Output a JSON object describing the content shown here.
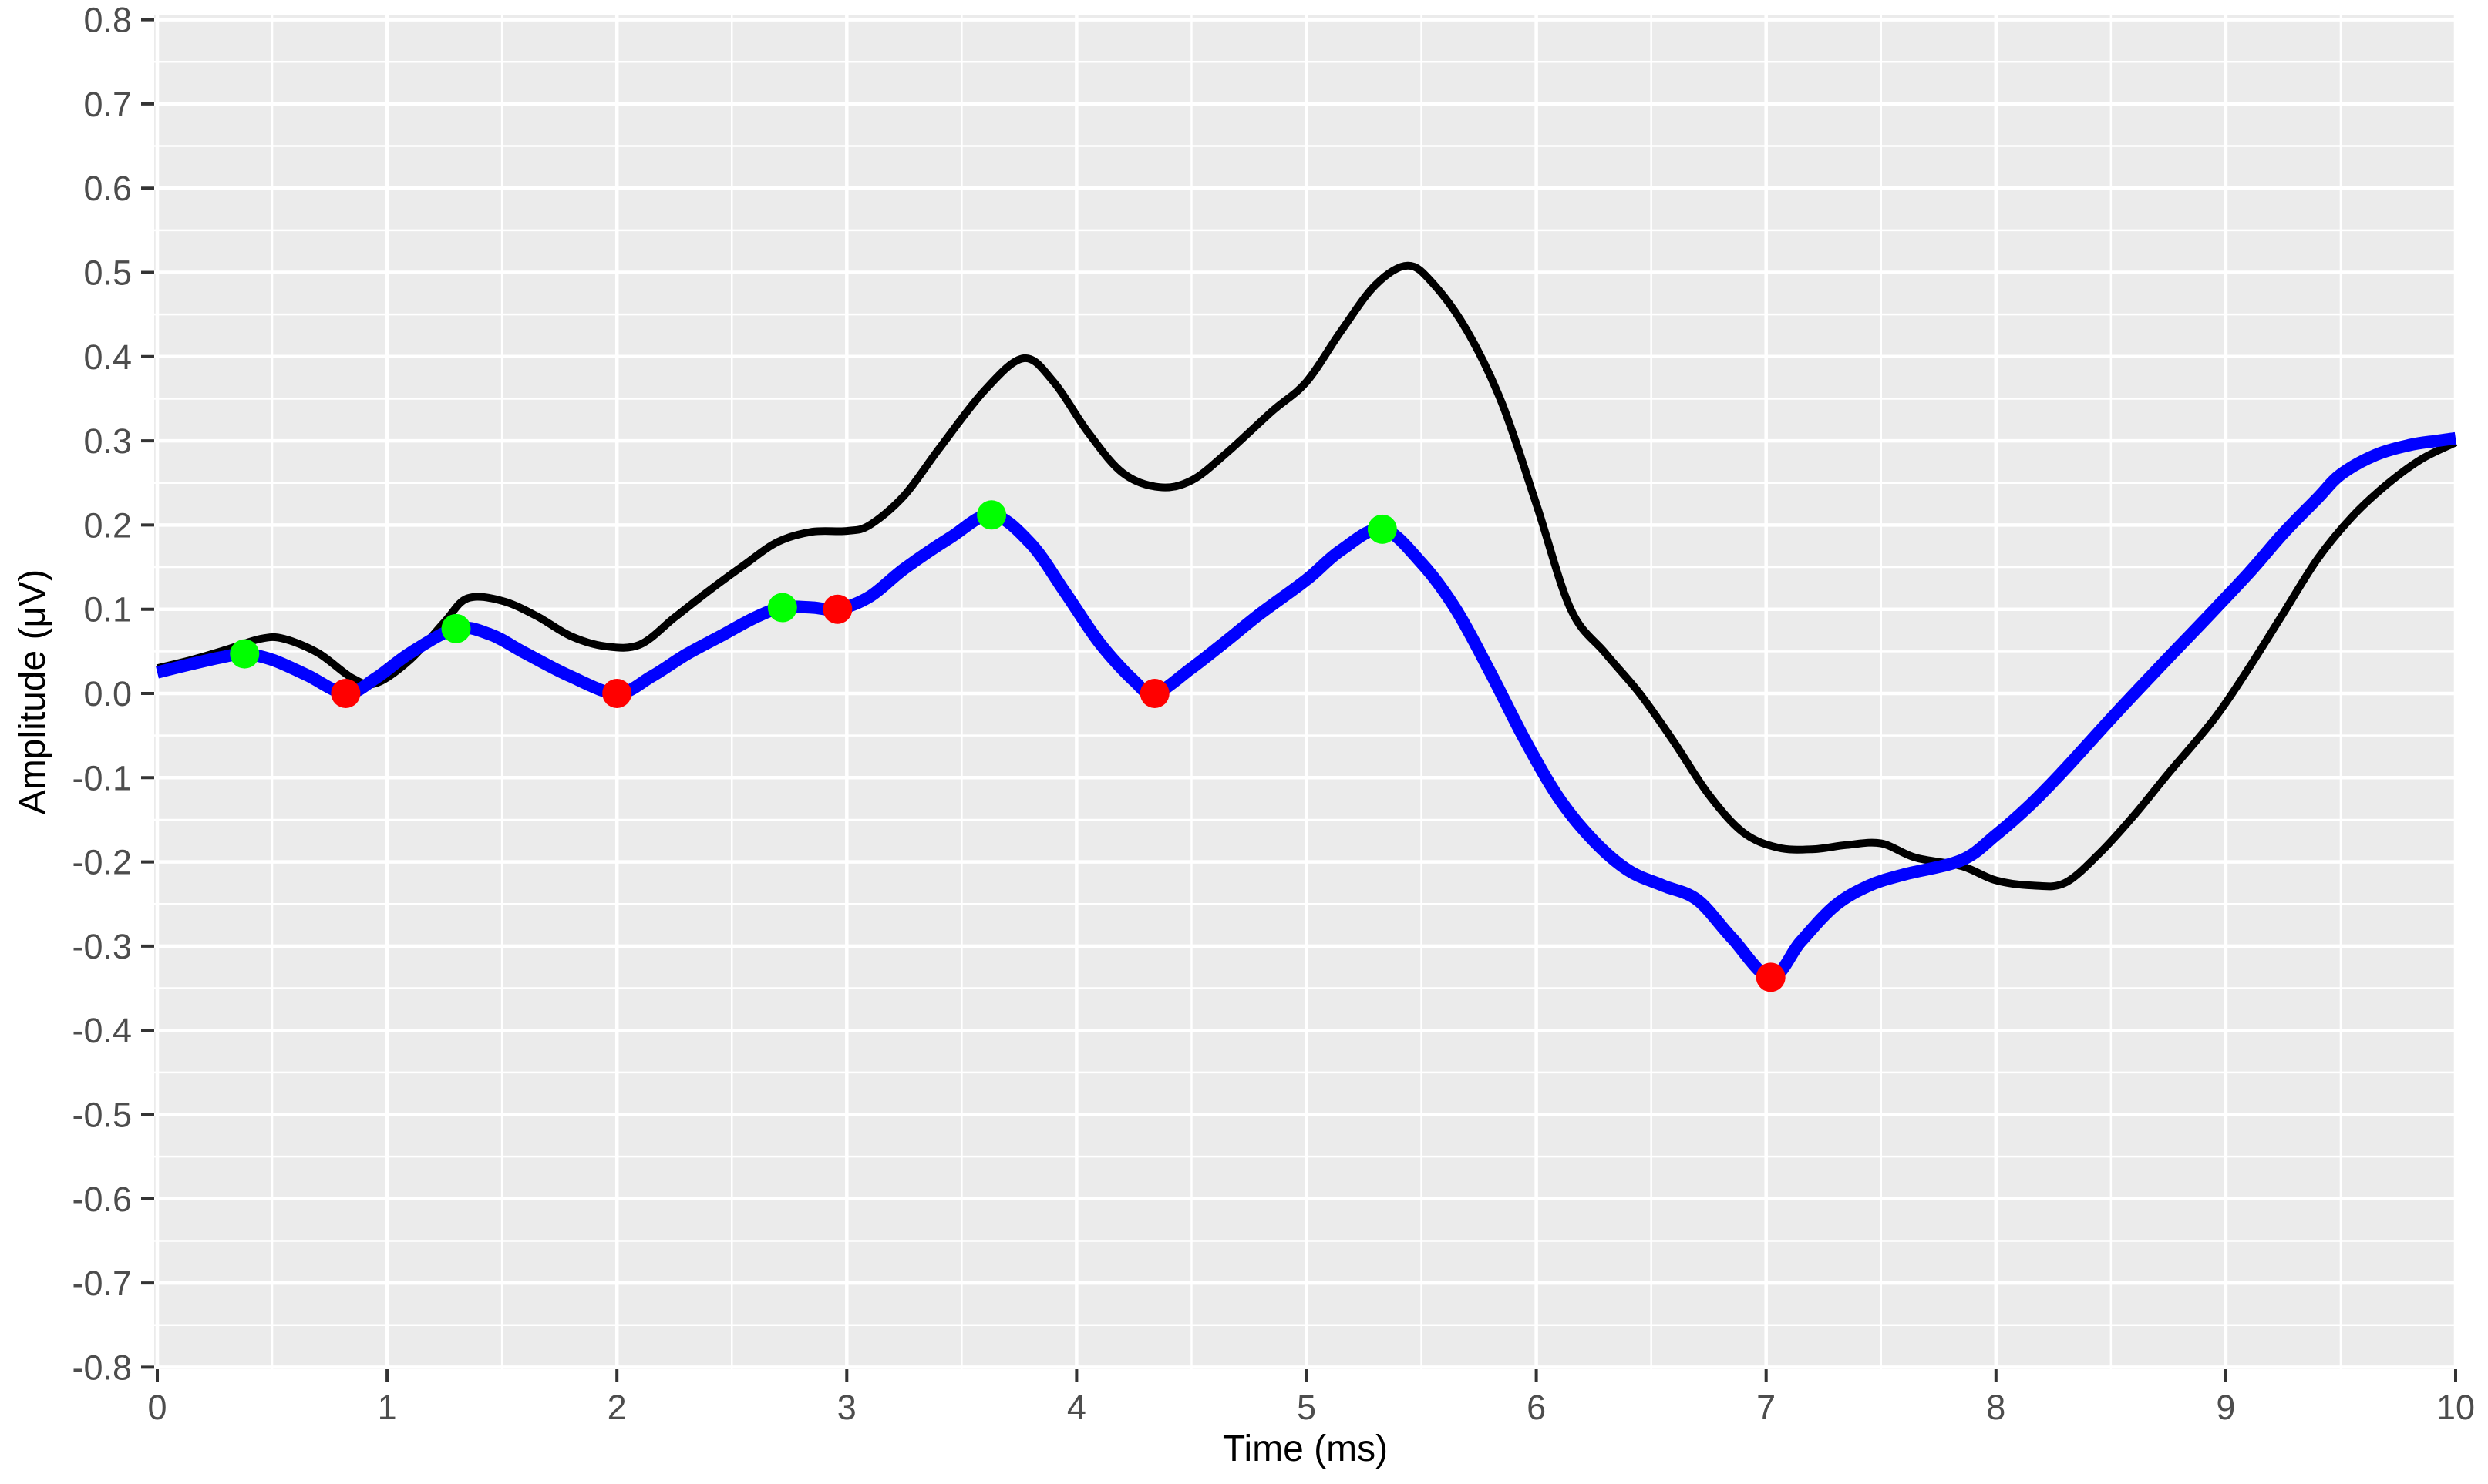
{
  "chart_data": {
    "type": "line",
    "title": "",
    "xlabel": "Time (ms)",
    "ylabel": "Amplitude (μV)",
    "xlim": [
      0,
      10
    ],
    "ylim": [
      -0.8,
      0.8
    ],
    "x_tick_values": [
      0,
      1,
      2,
      3,
      4,
      5,
      6,
      7,
      8,
      9,
      10
    ],
    "x_tick_labels": [
      "0",
      "1",
      "2",
      "3",
      "4",
      "5",
      "6",
      "7",
      "8",
      "9",
      "10"
    ],
    "y_tick_values": [
      0.8,
      0.7,
      0.6,
      0.5,
      0.4,
      0.3,
      0.2,
      0.1,
      0.0,
      -0.1,
      -0.2,
      -0.3,
      -0.4,
      -0.5,
      -0.6,
      -0.7,
      -0.8
    ],
    "y_tick_labels": [
      "0.8",
      "0.7",
      "0.6",
      "0.5",
      "0.4",
      "0.3",
      "0.2",
      "0.1",
      "0.0",
      "-0.1",
      "-0.2",
      "-0.3",
      "-0.4",
      "-0.5",
      "-0.6",
      "-0.7",
      "-0.8"
    ],
    "grid": {
      "major": true,
      "minor": true,
      "major_color": "#ffffff",
      "minor_color": "#ffffff"
    },
    "legend_position": "none",
    "panel_bg": "#ebebeb",
    "outer_bg": "#ffffff",
    "tick_mark_color": "#333333",
    "tick_label_color": "#4d4d4d",
    "axis_title_color": "#000000",
    "series": [
      {
        "name": "black-waveform",
        "color": "#000000",
        "stroke_width": 10,
        "points": [
          [
            0.0,
            0.03
          ],
          [
            0.15,
            0.04
          ],
          [
            0.3,
            0.052
          ],
          [
            0.45,
            0.065
          ],
          [
            0.55,
            0.065
          ],
          [
            0.7,
            0.048
          ],
          [
            0.85,
            0.018
          ],
          [
            0.95,
            0.012
          ],
          [
            1.1,
            0.04
          ],
          [
            1.25,
            0.085
          ],
          [
            1.35,
            0.113
          ],
          [
            1.5,
            0.11
          ],
          [
            1.65,
            0.092
          ],
          [
            1.8,
            0.068
          ],
          [
            1.95,
            0.056
          ],
          [
            2.1,
            0.058
          ],
          [
            2.25,
            0.09
          ],
          [
            2.4,
            0.122
          ],
          [
            2.55,
            0.152
          ],
          [
            2.7,
            0.18
          ],
          [
            2.85,
            0.192
          ],
          [
            3.0,
            0.193
          ],
          [
            3.1,
            0.2
          ],
          [
            3.25,
            0.235
          ],
          [
            3.4,
            0.29
          ],
          [
            3.6,
            0.36
          ],
          [
            3.77,
            0.398
          ],
          [
            3.9,
            0.37
          ],
          [
            4.05,
            0.31
          ],
          [
            4.2,
            0.262
          ],
          [
            4.36,
            0.245
          ],
          [
            4.5,
            0.253
          ],
          [
            4.65,
            0.285
          ],
          [
            4.85,
            0.335
          ],
          [
            5.0,
            0.37
          ],
          [
            5.15,
            0.43
          ],
          [
            5.3,
            0.485
          ],
          [
            5.44,
            0.508
          ],
          [
            5.55,
            0.487
          ],
          [
            5.7,
            0.43
          ],
          [
            5.85,
            0.345
          ],
          [
            6.0,
            0.225
          ],
          [
            6.15,
            0.1
          ],
          [
            6.3,
            0.048
          ],
          [
            6.45,
            0.0
          ],
          [
            6.6,
            -0.058
          ],
          [
            6.75,
            -0.12
          ],
          [
            6.9,
            -0.165
          ],
          [
            7.05,
            -0.183
          ],
          [
            7.2,
            -0.185
          ],
          [
            7.35,
            -0.18
          ],
          [
            7.5,
            -0.178
          ],
          [
            7.65,
            -0.195
          ],
          [
            7.85,
            -0.205
          ],
          [
            8.0,
            -0.222
          ],
          [
            8.16,
            -0.228
          ],
          [
            8.3,
            -0.225
          ],
          [
            8.45,
            -0.19
          ],
          [
            8.6,
            -0.145
          ],
          [
            8.75,
            -0.095
          ],
          [
            8.95,
            -0.03
          ],
          [
            9.1,
            0.03
          ],
          [
            9.25,
            0.095
          ],
          [
            9.4,
            0.16
          ],
          [
            9.55,
            0.21
          ],
          [
            9.7,
            0.248
          ],
          [
            9.85,
            0.278
          ],
          [
            10.0,
            0.298
          ]
        ]
      },
      {
        "name": "blue-waveform",
        "color": "#0000ff",
        "stroke_width": 16,
        "points": [
          [
            0.0,
            0.025
          ],
          [
            0.15,
            0.035
          ],
          [
            0.28,
            0.043
          ],
          [
            0.38,
            0.047
          ],
          [
            0.5,
            0.04
          ],
          [
            0.65,
            0.022
          ],
          [
            0.82,
            0.0
          ],
          [
            0.95,
            0.018
          ],
          [
            1.1,
            0.048
          ],
          [
            1.3,
            0.077
          ],
          [
            1.45,
            0.07
          ],
          [
            1.6,
            0.048
          ],
          [
            1.8,
            0.02
          ],
          [
            2.0,
            0.0
          ],
          [
            2.15,
            0.02
          ],
          [
            2.3,
            0.046
          ],
          [
            2.45,
            0.068
          ],
          [
            2.6,
            0.09
          ],
          [
            2.72,
            0.102
          ],
          [
            2.85,
            0.102
          ],
          [
            2.96,
            0.1
          ],
          [
            3.1,
            0.115
          ],
          [
            3.25,
            0.148
          ],
          [
            3.45,
            0.185
          ],
          [
            3.63,
            0.212
          ],
          [
            3.8,
            0.178
          ],
          [
            3.95,
            0.12
          ],
          [
            4.1,
            0.06
          ],
          [
            4.25,
            0.015
          ],
          [
            4.34,
            0.0
          ],
          [
            4.5,
            0.03
          ],
          [
            4.65,
            0.062
          ],
          [
            4.8,
            0.095
          ],
          [
            5.0,
            0.135
          ],
          [
            5.15,
            0.17
          ],
          [
            5.33,
            0.195
          ],
          [
            5.5,
            0.155
          ],
          [
            5.65,
            0.1
          ],
          [
            5.8,
            0.025
          ],
          [
            5.95,
            -0.055
          ],
          [
            6.1,
            -0.125
          ],
          [
            6.25,
            -0.175
          ],
          [
            6.4,
            -0.21
          ],
          [
            6.55,
            -0.228
          ],
          [
            6.7,
            -0.245
          ],
          [
            6.85,
            -0.29
          ],
          [
            7.02,
            -0.337
          ],
          [
            7.15,
            -0.295
          ],
          [
            7.3,
            -0.252
          ],
          [
            7.45,
            -0.228
          ],
          [
            7.6,
            -0.215
          ],
          [
            7.85,
            -0.198
          ],
          [
            8.0,
            -0.168
          ],
          [
            8.15,
            -0.132
          ],
          [
            8.3,
            -0.09
          ],
          [
            8.5,
            -0.03
          ],
          [
            8.7,
            0.028
          ],
          [
            8.9,
            0.085
          ],
          [
            9.1,
            0.143
          ],
          [
            9.25,
            0.19
          ],
          [
            9.4,
            0.232
          ],
          [
            9.5,
            0.26
          ],
          [
            9.65,
            0.283
          ],
          [
            9.8,
            0.295
          ],
          [
            9.92,
            0.3
          ],
          [
            10.0,
            0.303
          ]
        ]
      }
    ],
    "markers": [
      {
        "name": "green-peak-markers",
        "color": "#00ff00",
        "radius": 19,
        "points": [
          [
            0.38,
            0.047
          ],
          [
            1.3,
            0.077
          ],
          [
            2.72,
            0.102
          ],
          [
            3.63,
            0.212
          ],
          [
            5.33,
            0.195
          ]
        ]
      },
      {
        "name": "red-trough-markers",
        "color": "#ff0000",
        "radius": 19,
        "points": [
          [
            0.82,
            0.0
          ],
          [
            2.0,
            0.0
          ],
          [
            2.96,
            0.1
          ],
          [
            4.34,
            0.0
          ],
          [
            7.02,
            -0.337
          ]
        ]
      }
    ]
  }
}
